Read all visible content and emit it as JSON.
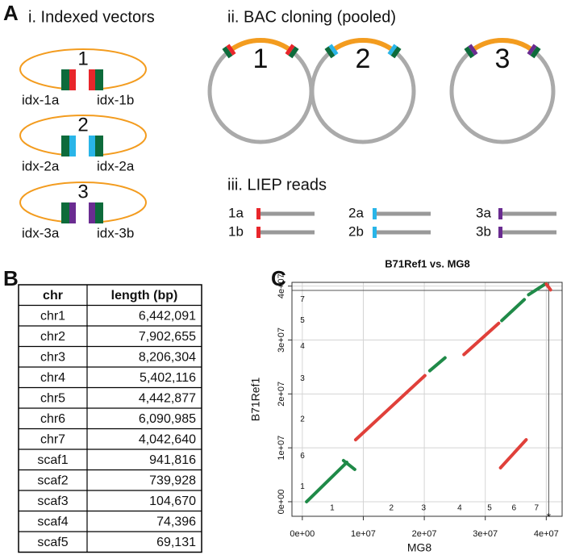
{
  "panel_a": {
    "label": "A",
    "indexed": {
      "title": "i. Indexed vectors",
      "vectors": [
        {
          "number": "1",
          "left": "idx-1a",
          "right": "idx-1b"
        },
        {
          "number": "2",
          "left": "idx-2a",
          "right": "idx-2a"
        },
        {
          "number": "3",
          "left": "idx-3a",
          "right": "idx-3b"
        }
      ]
    },
    "bac": {
      "title": "ii. BAC cloning (pooled)",
      "clones": [
        "1",
        "2",
        "3"
      ]
    },
    "reads": {
      "title": "iii. LIEP reads",
      "labels": [
        [
          "1a",
          "1b"
        ],
        [
          "2a",
          "2b"
        ],
        [
          "3a",
          "3b"
        ]
      ]
    }
  },
  "panel_b": {
    "label": "B",
    "table": {
      "header": [
        "chr",
        "length (bp)"
      ],
      "rows": [
        [
          "chr1",
          "6,442,091"
        ],
        [
          "chr2",
          "7,902,655"
        ],
        [
          "chr3",
          "8,206,304"
        ],
        [
          "chr4",
          "5,402,116"
        ],
        [
          "chr5",
          "4,442,877"
        ],
        [
          "chr6",
          "6,090,985"
        ],
        [
          "chr7",
          "4,042,640"
        ],
        [
          "scaf1",
          "941,816"
        ],
        [
          "scaf2",
          "739,928"
        ],
        [
          "scaf3",
          "104,670"
        ],
        [
          "scaf4",
          "74,396"
        ],
        [
          "scaf5",
          "69,131"
        ]
      ]
    }
  },
  "panel_c_label": "C",
  "chart_data": {
    "type": "segments",
    "title": "B71Ref1 vs. MG8",
    "x_label": "MG8",
    "y_label": "B71Ref1",
    "xlim": [
      -1700000,
      42600000
    ],
    "ylim": [
      -2700000,
      40700000
    ],
    "xticks": [
      {
        "value": 0,
        "label": "0e+00"
      },
      {
        "value": 10000000,
        "label": "1e+07"
      },
      {
        "value": 20000000,
        "label": "2e+07"
      },
      {
        "value": 30000000,
        "label": "3e+07"
      },
      {
        "value": 40000000,
        "label": "4e+07"
      }
    ],
    "yticks": [
      {
        "value": 0,
        "label": "0e+00"
      },
      {
        "value": 10000000,
        "label": "1e+07"
      },
      {
        "value": 20000000,
        "label": "2e+07"
      },
      {
        "value": 30000000,
        "label": "3e+07"
      },
      {
        "value": 40000000,
        "label": "4e+07"
      }
    ],
    "x_chr_ticks": [
      {
        "value": 4900000,
        "label": "1"
      },
      {
        "value": 14600000,
        "label": "2"
      },
      {
        "value": 19900000,
        "label": "3"
      },
      {
        "value": 25800000,
        "label": "4"
      },
      {
        "value": 30700000,
        "label": "5"
      },
      {
        "value": 34700000,
        "label": "6"
      },
      {
        "value": 38400000,
        "label": "7"
      }
    ],
    "y_chr_ticks": [
      {
        "value": 2800000,
        "label": "1"
      },
      {
        "value": 8500000,
        "label": "6"
      },
      {
        "value": 15300000,
        "label": "2"
      },
      {
        "value": 22800000,
        "label": "3"
      },
      {
        "value": 28800000,
        "label": "4"
      },
      {
        "value": 33600000,
        "label": "5"
      },
      {
        "value": 37500000,
        "label": "7"
      }
    ],
    "x_boundaries": [
      40400000
    ],
    "y_boundaries": [
      39200000
    ],
    "grid": true,
    "annotation": "*",
    "segments": [
      {
        "x": [
          700000,
          7300000
        ],
        "y": [
          0,
          7300000
        ],
        "color": "#1f8a48"
      },
      {
        "x": [
          6750000,
          8600000
        ],
        "y": [
          7640000,
          5990000
        ],
        "color": "#1f8a48"
      },
      {
        "x": [
          8740000,
          20100000
        ],
        "y": [
          11500000,
          23400000
        ],
        "color": "#e0403a"
      },
      {
        "x": [
          20900000,
          23400000
        ],
        "y": [
          24300000,
          26700000
        ],
        "color": "#1f8a48"
      },
      {
        "x": [
          26500000,
          32200000
        ],
        "y": [
          27300000,
          33100000
        ],
        "color": "#e0403a"
      },
      {
        "x": [
          32700000,
          36400000
        ],
        "y": [
          33600000,
          37500000
        ],
        "color": "#1f8a48"
      },
      {
        "x": [
          37100000,
          40000000
        ],
        "y": [
          38400000,
          40500000
        ],
        "color": "#1f8a48"
      },
      {
        "x": [
          32500000,
          36700000
        ],
        "y": [
          6300000,
          11500000
        ],
        "color": "#e0403a"
      },
      {
        "x": [
          40000000,
          40700000
        ],
        "y": [
          40400000,
          39300000
        ],
        "color": "#e0403a"
      }
    ]
  }
}
